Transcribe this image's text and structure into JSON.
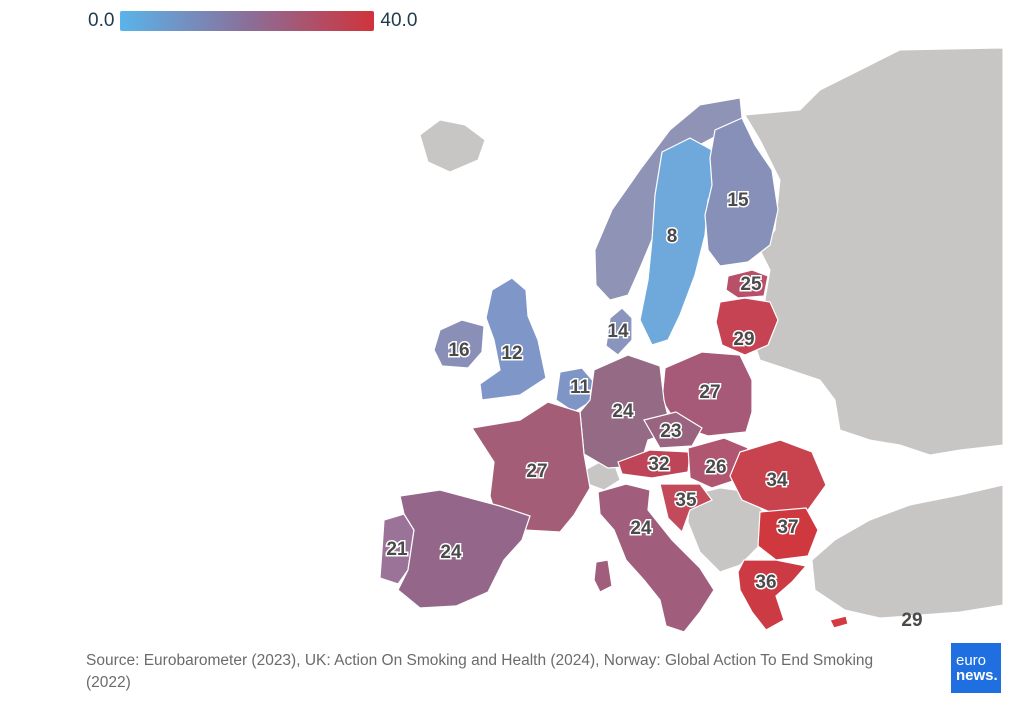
{
  "legend": {
    "min_label": "0.0",
    "max_label": "40.0",
    "color_low": "#5ab4ea",
    "color_mid": "#8a6f9a",
    "color_high": "#d0333b"
  },
  "countries": [
    {
      "name": "Sweden",
      "value": "8"
    },
    {
      "name": "Finland",
      "value": "15"
    },
    {
      "name": "Norway",
      "value": ""
    },
    {
      "name": "Estonia",
      "value": "25"
    },
    {
      "name": "Lithuania",
      "value": "29"
    },
    {
      "name": "Denmark",
      "value": "14"
    },
    {
      "name": "Ireland",
      "value": "16"
    },
    {
      "name": "United Kingdom",
      "value": "12"
    },
    {
      "name": "Netherlands",
      "value": "11"
    },
    {
      "name": "Poland",
      "value": "27"
    },
    {
      "name": "Germany",
      "value": "24"
    },
    {
      "name": "Czechia",
      "value": "23"
    },
    {
      "name": "France",
      "value": "27"
    },
    {
      "name": "Austria",
      "value": "32"
    },
    {
      "name": "Hungary",
      "value": "26"
    },
    {
      "name": "Romania",
      "value": "34"
    },
    {
      "name": "Croatia",
      "value": "35"
    },
    {
      "name": "Bulgaria",
      "value": "37"
    },
    {
      "name": "Italy",
      "value": "24"
    },
    {
      "name": "Portugal",
      "value": "21"
    },
    {
      "name": "Spain",
      "value": "24"
    },
    {
      "name": "Greece",
      "value": "36"
    },
    {
      "name": "Cyprus",
      "value": "29"
    }
  ],
  "source": "Source: Eurobarometer (2023), UK: Action On Smoking and Health (2024), Norway: Global Action To End Smoking (2022)",
  "logo": {
    "line1": "euro",
    "line2": "news."
  }
}
